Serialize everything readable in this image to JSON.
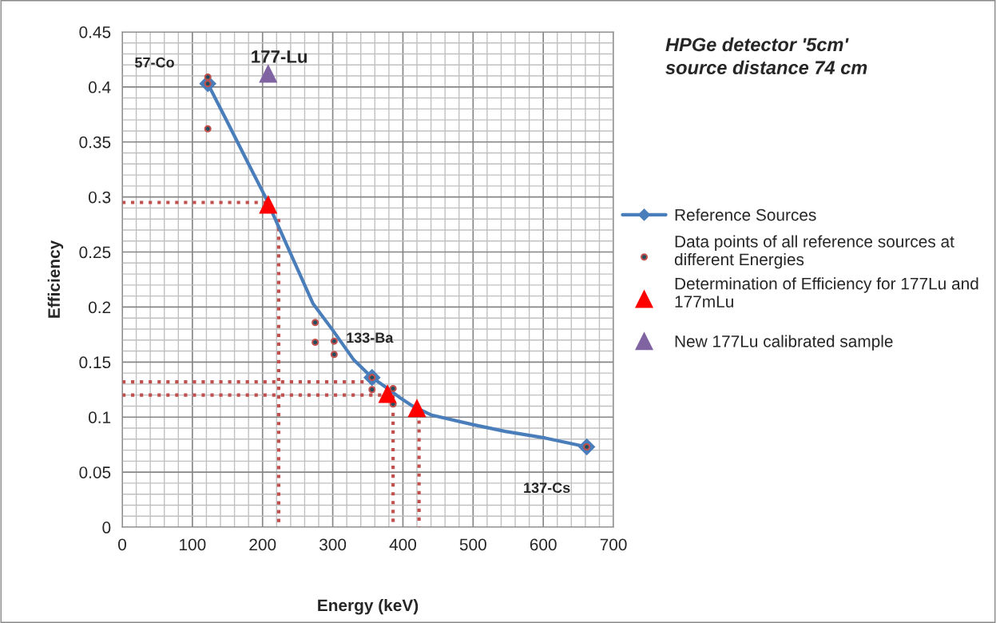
{
  "chart_data": {
    "type": "scatter",
    "title": "HPGe detector '5cm'\nsource distance 74 cm",
    "xlabel": "Energy (keV)",
    "ylabel": "Efficiency",
    "xlim": [
      0,
      700
    ],
    "xticks": [
      0,
      100,
      200,
      300,
      400,
      500,
      600,
      700
    ],
    "ylim": [
      0,
      0.45
    ],
    "yticks": [
      0,
      0.05,
      0.1,
      0.15,
      0.2,
      0.25,
      0.3,
      0.35,
      0.4,
      0.45
    ],
    "grid": true,
    "legend": "right",
    "series": [
      {
        "type": "line",
        "name": "Reference Sources",
        "color": "#4a7ebb",
        "marker": "none",
        "x": [
          122,
          150,
          180,
          204,
          239,
          272,
          300,
          330,
          356,
          376,
          395,
          414,
          440,
          501,
          546,
          603,
          662
        ],
        "values": [
          0.403,
          0.368,
          0.33,
          0.3,
          0.25,
          0.203,
          0.179,
          0.152,
          0.136,
          0.127,
          0.118,
          0.11,
          0.102,
          0.093,
          0.087,
          0.081,
          0.073
        ]
      },
      {
        "color": "#4a7ebb",
        "marker": "diamond",
        "x": [
          122,
          356,
          662
        ],
        "values": [
          0.403,
          0.136,
          0.073
        ]
      },
      {
        "name": "Data points of all reference sources at different Energies",
        "color": "#c0504d",
        "marker": "circle",
        "x": [
          122,
          122,
          122,
          275,
          275,
          302,
          302,
          356,
          356,
          386,
          386,
          662
        ],
        "values": [
          0.409,
          0.403,
          0.362,
          0.186,
          0.168,
          0.169,
          0.157,
          0.136,
          0.125,
          0.126,
          0.112,
          0.073
        ]
      },
      {
        "name": "Determination of Efficiency for 177Lu and 177mLu",
        "color": "#ff0000",
        "marker": "triangle",
        "x": [
          208,
          378,
          420
        ],
        "values": [
          0.293,
          0.121,
          0.108
        ]
      },
      {
        "name": "New 177Lu calibrated sample",
        "color": "#8064a2",
        "marker": "triangle",
        "x": [
          208
        ],
        "values": [
          0.412
        ]
      },
      {
        "type": "line",
        "color": "#c0504d",
        "line_style": "dotted",
        "marker": "none",
        "x": [
          0,
          208
        ],
        "values": [
          0.295,
          0.295
        ]
      },
      {
        "type": "line",
        "color": "#c0504d",
        "line_style": "dotted",
        "marker": "none",
        "x": [
          223,
          223
        ],
        "values": [
          0.28,
          0
        ]
      },
      {
        "type": "line",
        "color": "#c0504d",
        "line_style": "dotted",
        "marker": "none",
        "x": [
          0,
          360
        ],
        "values": [
          0.132,
          0.132
        ]
      },
      {
        "type": "line",
        "color": "#c0504d",
        "line_style": "dotted",
        "marker": "none",
        "x": [
          0,
          372
        ],
        "values": [
          0.12,
          0.12
        ]
      },
      {
        "type": "line",
        "color": "#c0504d",
        "line_style": "dotted",
        "marker": "none",
        "x": [
          386,
          386
        ],
        "values": [
          0.12,
          0
        ]
      },
      {
        "type": "line",
        "color": "#c0504d",
        "line_style": "dotted",
        "marker": "none",
        "x": [
          423,
          423
        ],
        "values": [
          0.105,
          0
        ]
      }
    ],
    "annotations": [
      {
        "text": "57-Co",
        "x": 122,
        "y": 0.403
      },
      {
        "text": "177-Lu",
        "x": 208,
        "y": 0.412
      },
      {
        "text": "133-Ba",
        "x": 302,
        "y": 0.169
      },
      {
        "text": "137-Cs",
        "x": 662,
        "y": 0.073
      }
    ]
  }
}
